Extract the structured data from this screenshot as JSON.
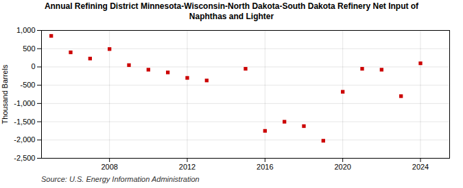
{
  "chart_data": {
    "type": "scatter",
    "title": "Annual Refining District Minnesota-Wisconsin-North Dakota-South Dakota Refinery Net Input of\nNaphthas and Lighter",
    "caption": "Source: U.S. Energy Information Administration",
    "ylabel": "Thousand Barrels",
    "x": [
      2005,
      2006,
      2007,
      2008,
      2009,
      2010,
      2011,
      2012,
      2013,
      2015,
      2016,
      2017,
      2018,
      2019,
      2020,
      2021,
      2022,
      2023,
      2024
    ],
    "values": [
      850,
      400,
      230,
      490,
      50,
      -75,
      -150,
      -300,
      -370,
      -50,
      -1750,
      -1500,
      -1620,
      -2020,
      -680,
      -50,
      -75,
      -800,
      100
    ],
    "color": "#cc0000",
    "marker": "square",
    "xlim": [
      2004.5,
      2025.5
    ],
    "xticks": [
      2008,
      2012,
      2016,
      2020,
      2024
    ],
    "ylim": [
      -2500,
      1000
    ],
    "yticks": [
      {
        "value": -2500,
        "label": "-2,500"
      },
      {
        "value": -2000,
        "label": "-2,000"
      },
      {
        "value": -1500,
        "label": "-1,500"
      },
      {
        "value": -1000,
        "label": "-1,000"
      },
      -500,
      0,
      500,
      {
        "value": 1000,
        "label": "1,000"
      }
    ],
    "grid": true
  }
}
